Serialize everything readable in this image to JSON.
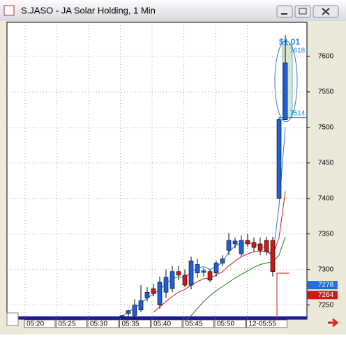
{
  "window": {
    "title": "S.JASO - JA Solar Holding, 1 Min"
  },
  "chart_data": {
    "type": "candlestick",
    "ylim": [
      7230,
      7648
    ],
    "yticks": [
      7250,
      7300,
      7350,
      7400,
      7450,
      7500,
      7550,
      7600
    ],
    "grid": true,
    "x_labels": [
      "05:20",
      "05:25",
      "05:30",
      "05:35",
      "05:40",
      "05:45",
      "05:50",
      "12-05:55"
    ],
    "candles": {
      "up_color": "#1f5fd8",
      "down_color": "#d01818",
      "open": [
        7233,
        7238,
        7235,
        7243,
        7260,
        7273,
        7250,
        7268,
        7273,
        7297,
        7292,
        7278,
        7295,
        7296,
        7297,
        7295,
        7309,
        7327,
        7336,
        7322,
        7341,
        7338,
        7336,
        7341,
        7341,
        7400,
        7511
      ],
      "high": [
        7236,
        7243,
        7258,
        7278,
        7275,
        7280,
        7290,
        7300,
        7305,
        7305,
        7300,
        7318,
        7315,
        7302,
        7300,
        7312,
        7320,
        7351,
        7345,
        7348,
        7350,
        7345,
        7345,
        7346,
        7346,
        7513,
        7630
      ],
      "low": [
        7230,
        7234,
        7232,
        7240,
        7255,
        7262,
        7245,
        7260,
        7268,
        7285,
        7275,
        7272,
        7288,
        7290,
        7282,
        7290,
        7305,
        7320,
        7330,
        7318,
        7332,
        7325,
        7320,
        7320,
        7290,
        7400,
        7511
      ],
      "close": [
        7235,
        7242,
        7250,
        7256,
        7268,
        7266,
        7282,
        7289,
        7297,
        7292,
        7278,
        7312,
        7307,
        7298,
        7285,
        7309,
        7315,
        7341,
        7340,
        7341,
        7336,
        7331,
        7327,
        7325,
        7297,
        7511,
        7591
      ]
    },
    "series": [
      {
        "color": "#2a7fd0",
        "values": [
          7234,
          7240,
          7246,
          7252,
          7260,
          7265,
          7272,
          7280,
          7287,
          7290,
          7288,
          7297,
          7302,
          7304,
          7300,
          7304,
          7310,
          7325,
          7333,
          7338,
          7338,
          7336,
          7333,
          7330,
          7318,
          7390,
          7500
        ]
      },
      {
        "color": "#d01818",
        "values": [
          null,
          null,
          null,
          null,
          null,
          7240,
          7247,
          7255,
          7262,
          7268,
          7272,
          7278,
          7283,
          7287,
          7288,
          7292,
          7297,
          7305,
          7312,
          7318,
          7322,
          7325,
          7326,
          7325,
          7320,
          7345,
          7410
        ]
      },
      {
        "color": "#1a7a1a",
        "values": [
          null,
          null,
          null,
          null,
          null,
          null,
          null,
          null,
          null,
          null,
          7227,
          7235,
          7245,
          7255,
          7263,
          7270,
          7276,
          7282,
          7288,
          7293,
          7298,
          7303,
          7307,
          7309,
          7311,
          7320,
          7346
        ]
      }
    ],
    "price_markers": [
      {
        "label": "7278",
        "value": 7278,
        "color": "#1f6fd8"
      },
      {
        "label": "7264",
        "value": 7264,
        "color": "#d01818"
      }
    ],
    "annotations": {
      "change": "$1.01",
      "high": "7618",
      "low": "7514"
    }
  }
}
